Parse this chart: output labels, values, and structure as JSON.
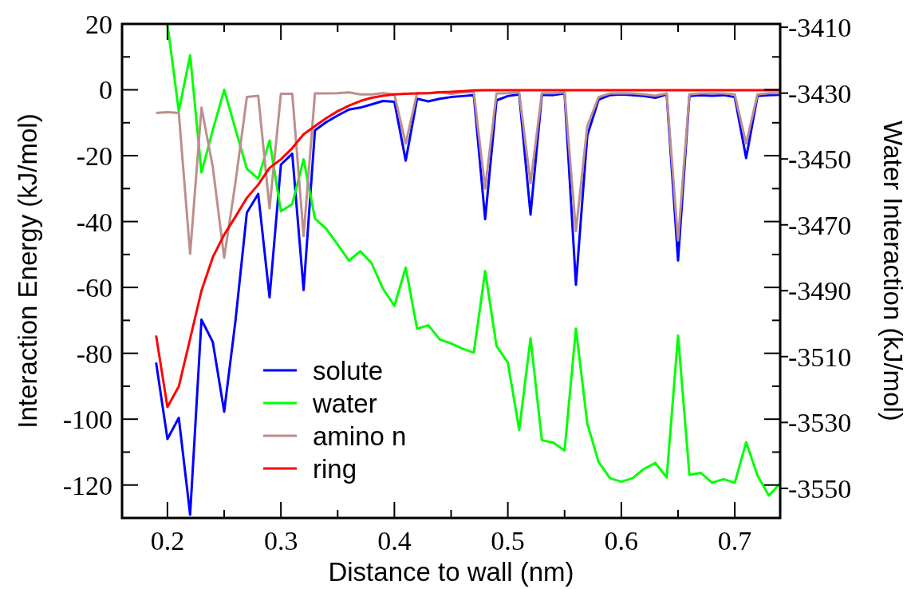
{
  "chart_data": {
    "type": "line",
    "xlabel": "Distance to wall (nm)",
    "ylabel": "Interaction Energy (kJ/mol)",
    "y2label": "Water Interaction (kJ/mol)",
    "x": [
      0.19,
      0.2,
      0.21,
      0.22,
      0.23,
      0.24,
      0.25,
      0.26,
      0.27,
      0.28,
      0.29,
      0.3,
      0.31,
      0.32,
      0.33,
      0.34,
      0.35,
      0.36,
      0.37,
      0.38,
      0.39,
      0.4,
      0.41,
      0.42,
      0.43,
      0.44,
      0.45,
      0.46,
      0.47,
      0.48,
      0.49,
      0.5,
      0.51,
      0.52,
      0.53,
      0.54,
      0.55,
      0.56,
      0.57,
      0.58,
      0.59,
      0.6,
      0.61,
      0.62,
      0.63,
      0.64,
      0.65,
      0.66,
      0.67,
      0.68,
      0.69,
      0.7,
      0.71,
      0.72,
      0.73,
      0.74
    ],
    "series": [
      {
        "name": "solute",
        "color": "#0000ff",
        "values": [
          -82.8,
          -106,
          -99.6,
          -129,
          -69.8,
          -76.6,
          -97.7,
          -70,
          -37.3,
          -31.6,
          -63,
          -22.7,
          -19.4,
          -60.8,
          -12.3,
          -9.8,
          -7.8,
          -6,
          -5.4,
          -4.4,
          -3.4,
          -3.6,
          -21.5,
          -2.7,
          -3.5,
          -2.7,
          -2.2,
          -1.9,
          -1.6,
          -39.3,
          -3.2,
          -1.9,
          -1.4,
          -37.9,
          -1.5,
          -1.6,
          -1.1,
          -59.2,
          -13.9,
          -3,
          -1.6,
          -1.4,
          -1.6,
          -1.9,
          -2.4,
          -1.4,
          -51.8,
          -1.9,
          -1.6,
          -1.8,
          -1.6,
          -2.2,
          -20.7,
          -1.9,
          -1.6,
          -1.5
        ]
      },
      {
        "name": "water",
        "color": "#00ff00",
        "axis": "y2",
        "values": [
          null,
          -3409,
          -3435.5,
          -3418.5,
          -3454.1,
          -3441.2,
          -3429,
          -3441,
          -3453,
          -3456,
          -3444.4,
          -3465.9,
          -3463.7,
          -3450.1,
          -3468.1,
          -3471.2,
          -3476,
          -3480.9,
          -3478,
          -3481.7,
          -3489.4,
          -3494.6,
          -3483,
          -3501.5,
          -3500.5,
          -3504.8,
          -3506,
          -3507.6,
          -3508.8,
          -3484,
          -3506.8,
          -3511.8,
          -3532.3,
          -3504.4,
          -3535.4,
          -3536.1,
          -3538.5,
          -3501.5,
          -3530.3,
          -3542,
          -3546.9,
          -3548,
          -3546.9,
          -3544.1,
          -3542.3,
          -3546.7,
          -3503.6,
          -3545.9,
          -3545.3,
          -3548.3,
          -3547.2,
          -3548.3,
          -3536,
          -3546.1,
          -3552.2,
          -3548.5
        ]
      },
      {
        "name": "amino n",
        "color": "#bc8f8f",
        "values": [
          -7,
          -6.8,
          -7,
          -49.8,
          -5.4,
          -23.5,
          -51,
          -28,
          -2.2,
          -1.8,
          -36,
          -1.2,
          -1.2,
          -44.4,
          -1.1,
          -1.1,
          -1,
          -0.8,
          -1.4,
          -1.4,
          -1,
          -1.4,
          -16.3,
          -1,
          -1,
          -0.8,
          -1.2,
          -0.8,
          -0.7,
          -30,
          -1.1,
          -1,
          -0.8,
          -28.4,
          -1,
          -1,
          -0.8,
          -42.9,
          -11,
          -2.2,
          -1.1,
          -1,
          -1.1,
          -1.4,
          -1.8,
          -1.1,
          -45.7,
          -1.4,
          -1.1,
          -1.1,
          -1.1,
          -1.4,
          -16.3,
          -1.4,
          -1,
          -1
        ]
      },
      {
        "name": "ring",
        "color": "#ff0000",
        "values": [
          -74.6,
          -96.3,
          -90.1,
          -75.6,
          -61,
          -50.8,
          -44,
          -38.5,
          -32.8,
          -28.8,
          -23.7,
          -21.1,
          -17.7,
          -13.5,
          -11,
          -8.6,
          -6.5,
          -4.8,
          -3.4,
          -2.4,
          -1.8,
          -1.4,
          -1.2,
          -1.1,
          -1,
          -0.7,
          -0.6,
          -0.4,
          -0.2,
          -0.1,
          -0.1,
          -0.1,
          -0.1,
          -0.1,
          -0.1,
          -0.1,
          -0.1,
          -0.1,
          -0.1,
          -0.1,
          -0.1,
          -0.1,
          -0.1,
          -0.1,
          -0.1,
          -0.1,
          -0.1,
          -0.1,
          -0.1,
          -0.1,
          -0.1,
          -0.1,
          -0.1,
          -0.1,
          -0.1,
          -0.1
        ]
      }
    ],
    "xlim": [
      0.16,
      0.74
    ],
    "xticks": [
      0.2,
      {
        "value": 0.25,
        "label": null
      },
      0.3,
      {
        "value": 0.35,
        "label": null
      },
      0.4,
      {
        "value": 0.45,
        "label": null
      },
      0.5,
      {
        "value": 0.55,
        "label": null
      },
      0.6,
      {
        "value": 0.65,
        "label": null
      },
      0.7
    ],
    "ylim": [
      -130,
      20
    ],
    "yticks": [
      -120,
      {
        "value": -110,
        "label": null
      },
      -100,
      {
        "value": -90,
        "label": null
      },
      -80,
      {
        "value": -70,
        "label": null
      },
      -60,
      {
        "value": -50,
        "label": null
      },
      -40,
      {
        "value": -30,
        "label": null
      },
      -20,
      {
        "value": -10,
        "label": null
      },
      0,
      {
        "value": 10,
        "label": null
      },
      20
    ],
    "y2lim": [
      -3559,
      -3409
    ],
    "y2ticks": [
      -3550,
      -3530,
      -3510,
      -3490,
      -3470,
      -3450,
      -3430,
      -3410
    ],
    "legend": "bottom",
    "grid": false,
    "line_style": "solid",
    "marker": "none"
  }
}
